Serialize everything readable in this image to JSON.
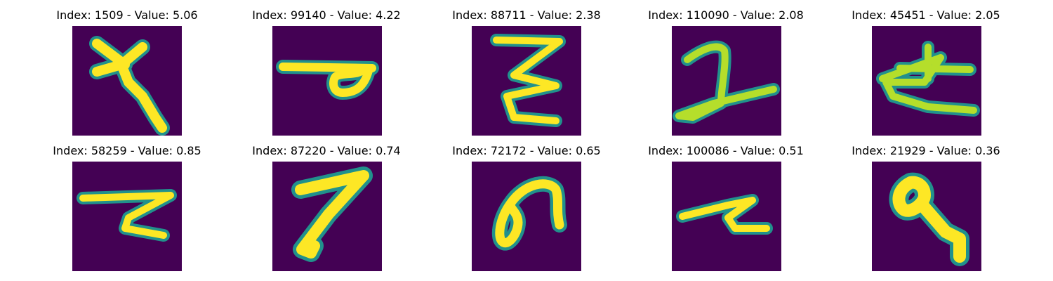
{
  "figure": {
    "background": "#ffffff",
    "panel_background": "#440154",
    "glyph_colors": {
      "core": "#fde725",
      "mid": "#b5de2b",
      "edge": "#21918c"
    }
  },
  "panels": [
    {
      "index": 1509,
      "value": 5.06,
      "label": "Index: 1509 - Value: 5.06",
      "glyph": "cross-hook-glyph"
    },
    {
      "index": 99140,
      "value": 4.22,
      "label": "Index: 99140 - Value: 4.22",
      "glyph": "bar-loop-glyph"
    },
    {
      "index": 88711,
      "value": 2.38,
      "label": "Index: 88711 - Value: 2.38",
      "glyph": "zigzag-glyph"
    },
    {
      "index": 110090,
      "value": 2.08,
      "label": "Index: 110090 - Value: 2.08",
      "glyph": "two-like-glyph"
    },
    {
      "index": 45451,
      "value": 2.05,
      "label": "Index: 45451 - Value: 2.05",
      "glyph": "triangle-cross-glyph"
    },
    {
      "index": 58259,
      "value": 0.85,
      "label": "Index: 58259 - Value: 0.85",
      "glyph": "z-shape-glyph"
    },
    {
      "index": 87220,
      "value": 0.74,
      "label": "Index: 87220 - Value: 0.74",
      "glyph": "seven-like-glyph"
    },
    {
      "index": 72172,
      "value": 0.65,
      "label": "Index: 72172 - Value: 0.65",
      "glyph": "loop-curve-glyph"
    },
    {
      "index": 100086,
      "value": 0.51,
      "label": "Index: 100086 - Value: 0.51",
      "glyph": "z-shape-small-glyph"
    },
    {
      "index": 21929,
      "value": 0.36,
      "label": "Index: 21929 - Value: 0.36",
      "glyph": "key-shape-glyph"
    }
  ]
}
